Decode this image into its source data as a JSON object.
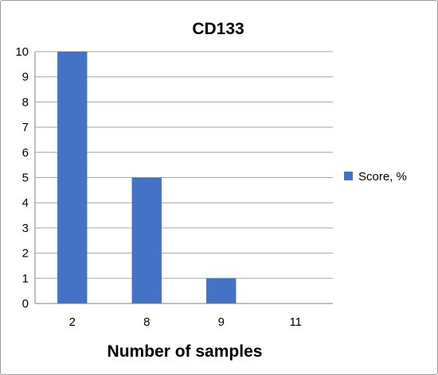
{
  "chart_data": {
    "type": "bar",
    "title": "CD133",
    "xlabel": "Number of samples",
    "ylabel": "",
    "categories": [
      "2",
      "8",
      "9",
      "11"
    ],
    "series": [
      {
        "name": "Score, %",
        "values": [
          10,
          5,
          1,
          0
        ],
        "color": "#4472c4"
      }
    ],
    "ylim": [
      0,
      10
    ],
    "yticks": [
      "0",
      "1",
      "2",
      "3",
      "4",
      "5",
      "6",
      "7",
      "8",
      "9",
      "10"
    ],
    "grid": true,
    "legend_position": "right"
  }
}
